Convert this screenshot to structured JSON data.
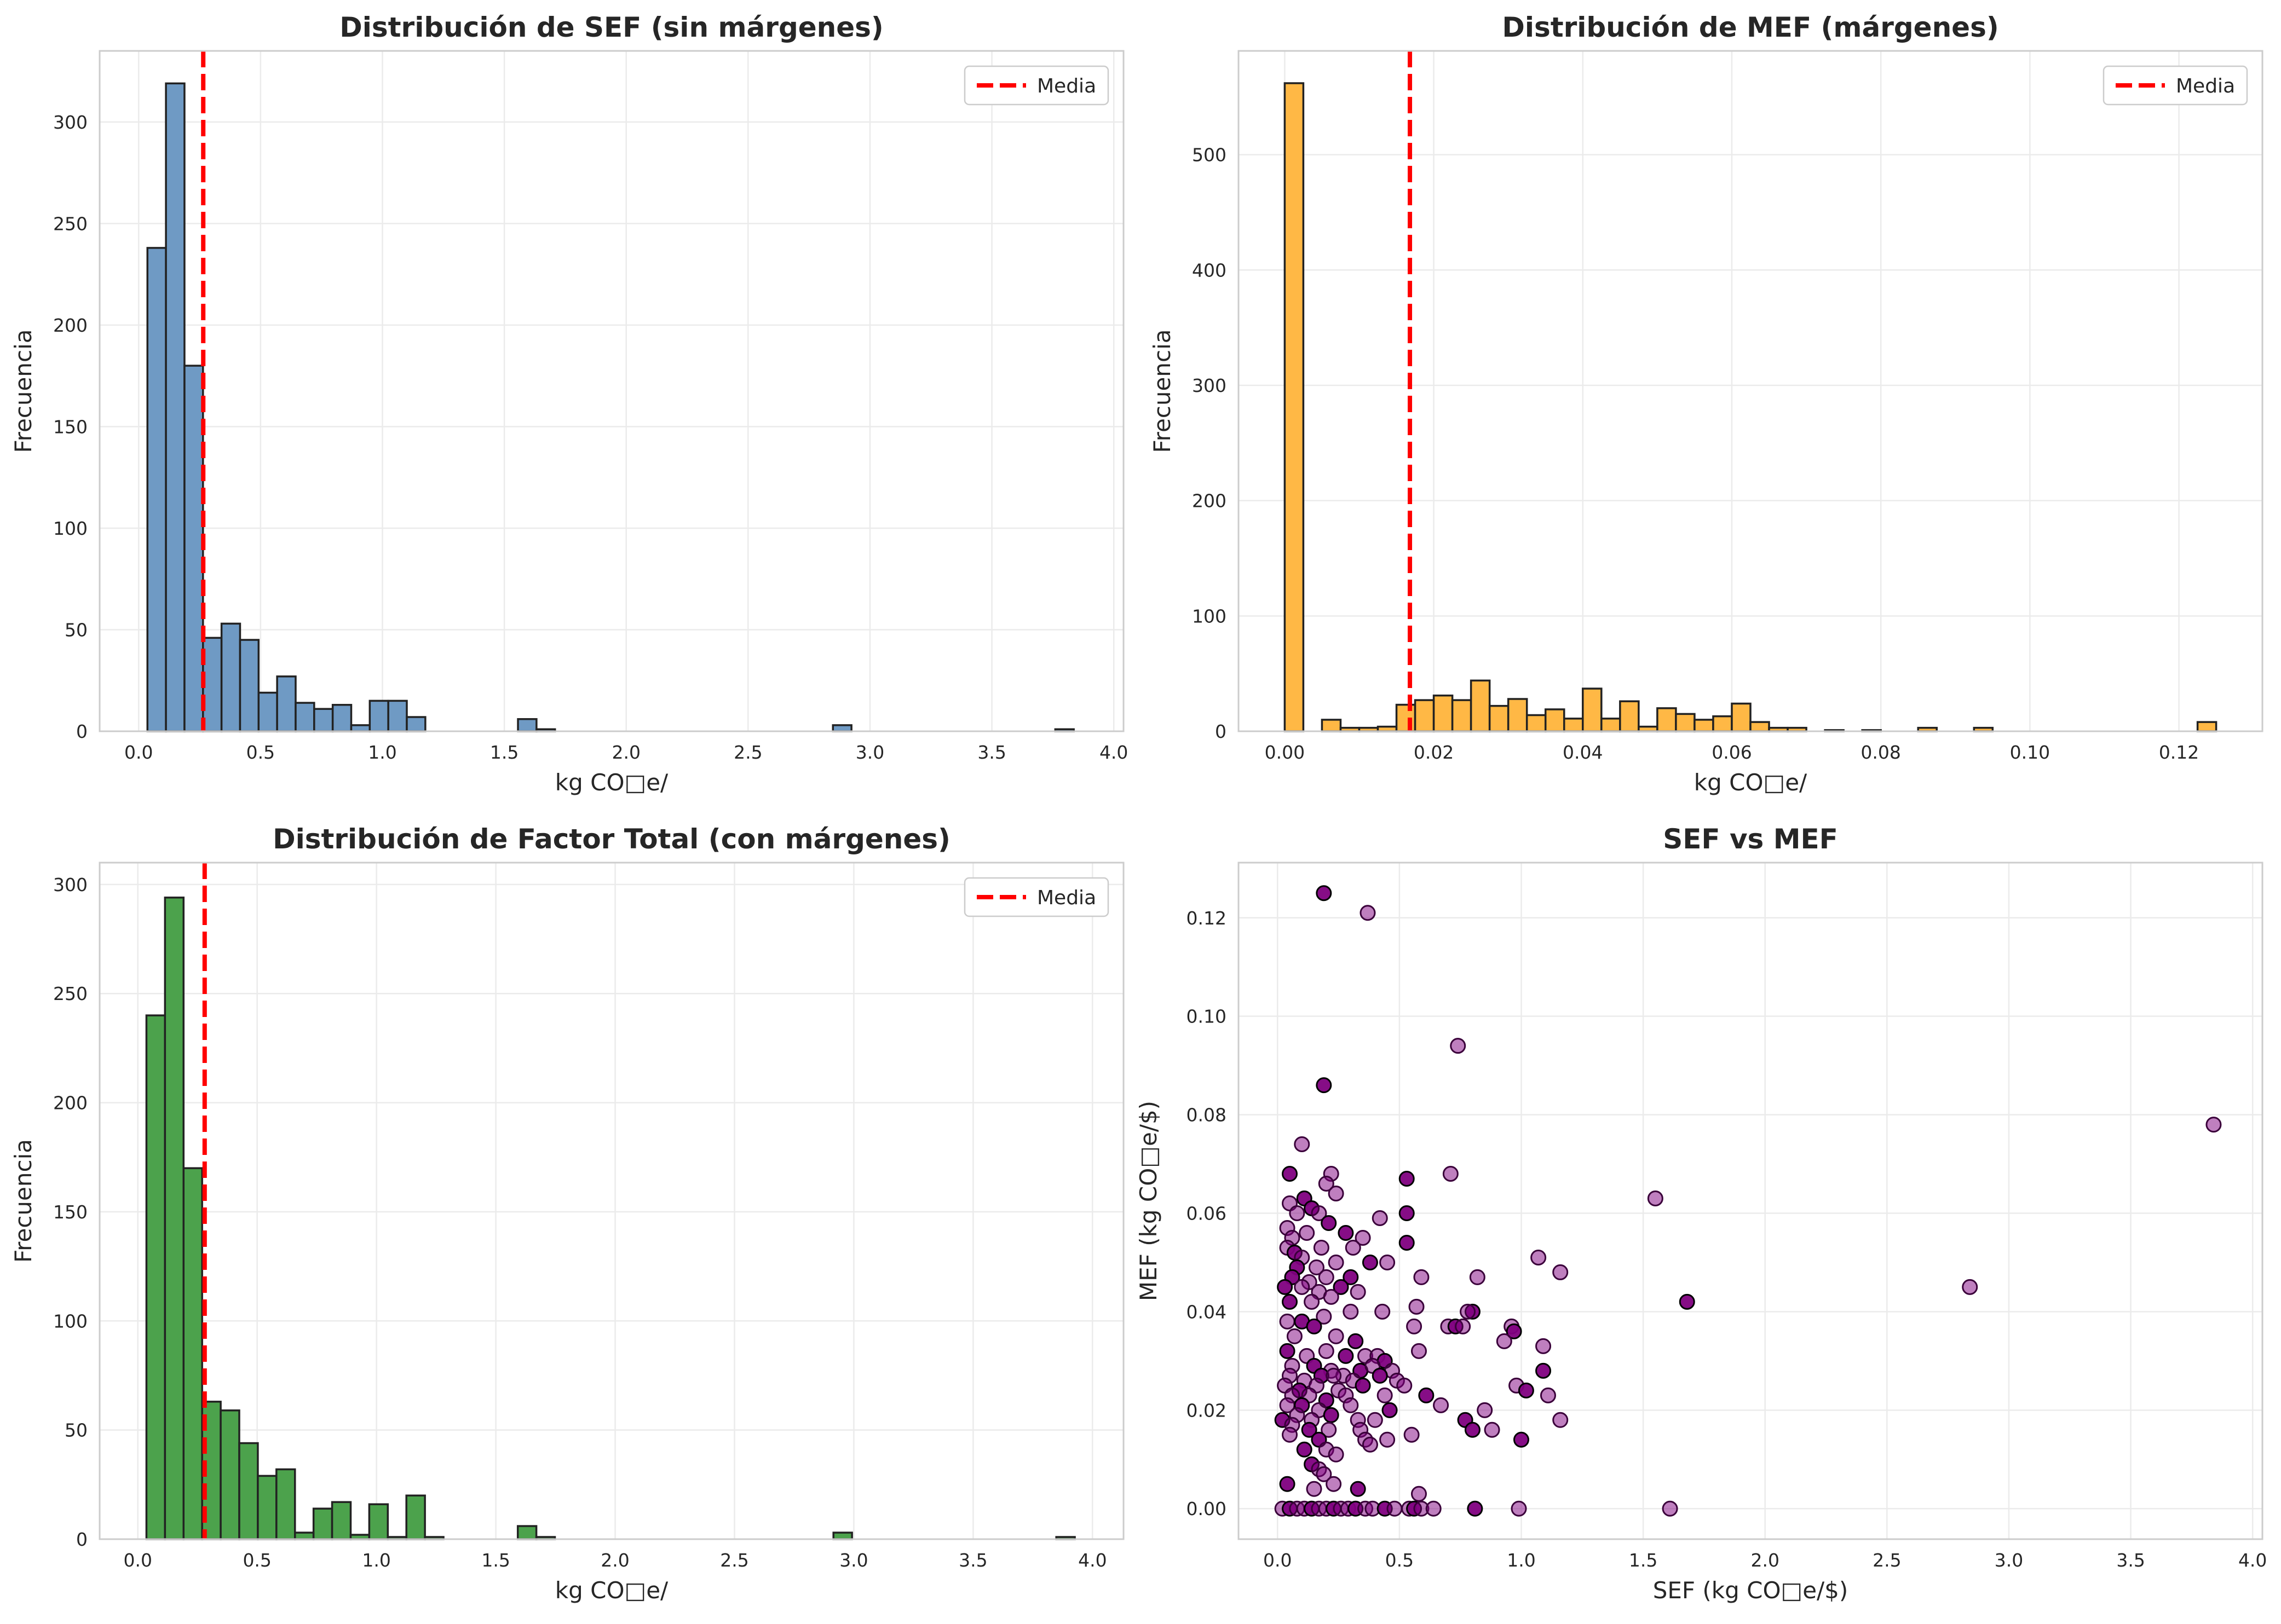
{
  "chart_data": [
    {
      "type": "bar",
      "title": "Distribución de SEF (sin márgenes)",
      "xlabel": "kg CO□e/",
      "ylabel": "Frecuencia",
      "xlim": [
        -0.16,
        4.04
      ],
      "ylim": [
        0,
        335
      ],
      "xticks": [
        0.0,
        0.5,
        1.0,
        1.5,
        2.0,
        2.5,
        3.0,
        3.5,
        4.0
      ],
      "xtick_labels": [
        "0.0",
        "0.5",
        "1.0",
        "1.5",
        "2.0",
        "2.5",
        "3.0",
        "3.5",
        "4.0"
      ],
      "yticks": [
        0,
        50,
        100,
        150,
        200,
        250,
        300
      ],
      "ytick_labels": [
        "0",
        "50",
        "100",
        "150",
        "200",
        "250",
        "300"
      ],
      "bin_start": 0.036,
      "bin_width": 0.076,
      "values": [
        238,
        319,
        180,
        46,
        53,
        45,
        19,
        27,
        14,
        11,
        13,
        3,
        15,
        15,
        7,
        0,
        0,
        0,
        0,
        0,
        6,
        1,
        0,
        0,
        0,
        0,
        0,
        0,
        0,
        0,
        0,
        0,
        0,
        0,
        0,
        0,
        0,
        3,
        0,
        0,
        0,
        0,
        0,
        0,
        0,
        0,
        0,
        0,
        0,
        1
      ],
      "mean": 0.265,
      "bar_color": "#6f9ac4",
      "mean_color": "#ff0000",
      "legend": [
        "Media"
      ],
      "legend_position": "top-right",
      "grid": true
    },
    {
      "type": "bar",
      "title": "Distribución de MEF (márgenes)",
      "xlabel": "kg CO□e/",
      "ylabel": "Frecuencia",
      "xlim": [
        -0.0062,
        0.1312
      ],
      "ylim": [
        0,
        590
      ],
      "xticks": [
        0.0,
        0.02,
        0.04,
        0.06,
        0.08,
        0.1,
        0.12
      ],
      "xtick_labels": [
        "0.00",
        "0.02",
        "0.04",
        "0.06",
        "0.08",
        "0.10",
        "0.12"
      ],
      "yticks": [
        0,
        100,
        200,
        300,
        400,
        500
      ],
      "ytick_labels": [
        "0",
        "100",
        "200",
        "300",
        "400",
        "500"
      ],
      "bin_start": 0.0,
      "bin_width": 0.0025,
      "values": [
        562,
        0,
        10,
        3,
        3,
        4,
        23,
        27,
        31,
        27,
        44,
        22,
        28,
        14,
        19,
        11,
        37,
        11,
        26,
        4,
        20,
        15,
        10,
        13,
        24,
        8,
        3,
        3,
        0,
        1,
        0,
        1,
        0,
        0,
        3,
        0,
        0,
        3,
        0,
        0,
        0,
        0,
        0,
        0,
        0,
        0,
        0,
        0,
        0,
        8
      ],
      "mean": 0.0168,
      "bar_color": "#ffb845",
      "mean_color": "#ff0000",
      "legend": [
        "Media"
      ],
      "legend_position": "top-right",
      "grid": true
    },
    {
      "type": "bar",
      "title": "Distribución de Factor Total (con márgenes)",
      "xlabel": "kg CO□e/",
      "ylabel": "Frecuencia",
      "xlim": [
        -0.16,
        4.13
      ],
      "ylim": [
        0,
        310
      ],
      "xticks": [
        0.0,
        0.5,
        1.0,
        1.5,
        2.0,
        2.5,
        3.0,
        3.5,
        4.0
      ],
      "xtick_labels": [
        "0.0",
        "0.5",
        "1.0",
        "1.5",
        "2.0",
        "2.5",
        "3.0",
        "3.5",
        "4.0"
      ],
      "yticks": [
        0,
        50,
        100,
        150,
        200,
        250,
        300
      ],
      "ytick_labels": [
        "0",
        "50",
        "100",
        "150",
        "200",
        "250",
        "300"
      ],
      "bin_start": 0.036,
      "bin_width": 0.0778,
      "values": [
        240,
        294,
        170,
        63,
        59,
        44,
        29,
        32,
        3,
        14,
        17,
        2,
        16,
        1,
        20,
        1,
        0,
        0,
        0,
        0,
        6,
        1,
        0,
        0,
        0,
        0,
        0,
        0,
        0,
        0,
        0,
        0,
        0,
        0,
        0,
        0,
        0,
        3,
        0,
        0,
        0,
        0,
        0,
        0,
        0,
        0,
        0,
        0,
        0,
        1
      ],
      "mean": 0.28,
      "bar_color": "#4ca24c",
      "mean_color": "#ff0000",
      "legend": [
        "Media"
      ],
      "legend_position": "top-right",
      "grid": true
    },
    {
      "type": "scatter",
      "title": "SEF vs MEF",
      "xlabel": "SEF (kg CO□e/$)",
      "ylabel": "MEF (kg CO□e/$)",
      "xlim": [
        -0.16,
        4.04
      ],
      "ylim": [
        -0.0062,
        0.1312
      ],
      "xticks": [
        0.0,
        0.5,
        1.0,
        1.5,
        2.0,
        2.5,
        3.0,
        3.5,
        4.0
      ],
      "xtick_labels": [
        "0.0",
        "0.5",
        "1.0",
        "1.5",
        "2.0",
        "2.5",
        "3.0",
        "3.5",
        "4.0"
      ],
      "yticks": [
        0.0,
        0.02,
        0.04,
        0.06,
        0.08,
        0.1,
        0.12
      ],
      "ytick_labels": [
        "0.00",
        "0.02",
        "0.04",
        "0.06",
        "0.08",
        "0.10",
        "0.12"
      ],
      "point_color": "#800080",
      "grid": true,
      "points": [
        [
          0.19,
          0.125
        ],
        [
          0.37,
          0.121
        ],
        [
          0.74,
          0.094
        ],
        [
          0.19,
          0.086
        ],
        [
          3.84,
          0.078
        ],
        [
          0.1,
          0.074
        ],
        [
          0.05,
          0.068
        ],
        [
          0.22,
          0.068
        ],
        [
          0.71,
          0.068
        ],
        [
          0.53,
          0.067
        ],
        [
          0.2,
          0.066
        ],
        [
          0.24,
          0.064
        ],
        [
          0.11,
          0.063
        ],
        [
          1.55,
          0.063
        ],
        [
          0.05,
          0.062
        ],
        [
          0.14,
          0.061
        ],
        [
          0.08,
          0.06
        ],
        [
          0.17,
          0.06
        ],
        [
          0.53,
          0.06
        ],
        [
          0.42,
          0.059
        ],
        [
          0.04,
          0.057
        ],
        [
          0.21,
          0.058
        ],
        [
          0.06,
          0.055
        ],
        [
          0.12,
          0.056
        ],
        [
          0.28,
          0.056
        ],
        [
          0.35,
          0.055
        ],
        [
          0.04,
          0.053
        ],
        [
          0.07,
          0.052
        ],
        [
          0.18,
          0.053
        ],
        [
          0.31,
          0.053
        ],
        [
          0.53,
          0.054
        ],
        [
          0.1,
          0.051
        ],
        [
          1.07,
          0.051
        ],
        [
          0.08,
          0.049
        ],
        [
          0.16,
          0.049
        ],
        [
          0.24,
          0.05
        ],
        [
          0.38,
          0.05
        ],
        [
          0.45,
          0.05
        ],
        [
          1.16,
          0.048
        ],
        [
          0.06,
          0.047
        ],
        [
          0.13,
          0.046
        ],
        [
          0.2,
          0.047
        ],
        [
          0.3,
          0.047
        ],
        [
          0.59,
          0.047
        ],
        [
          0.82,
          0.047
        ],
        [
          0.03,
          0.045
        ],
        [
          0.1,
          0.045
        ],
        [
          0.17,
          0.044
        ],
        [
          0.26,
          0.045
        ],
        [
          2.84,
          0.045
        ],
        [
          0.33,
          0.044
        ],
        [
          0.05,
          0.042
        ],
        [
          0.14,
          0.042
        ],
        [
          0.22,
          0.043
        ],
        [
          1.68,
          0.042
        ],
        [
          0.43,
          0.04
        ],
        [
          0.57,
          0.041
        ],
        [
          0.8,
          0.04
        ],
        [
          0.78,
          0.04
        ],
        [
          0.04,
          0.038
        ],
        [
          0.1,
          0.038
        ],
        [
          0.19,
          0.039
        ],
        [
          0.3,
          0.04
        ],
        [
          0.15,
          0.037
        ],
        [
          0.56,
          0.037
        ],
        [
          0.7,
          0.037
        ],
        [
          0.73,
          0.037
        ],
        [
          0.76,
          0.037
        ],
        [
          0.96,
          0.037
        ],
        [
          0.97,
          0.036
        ],
        [
          0.07,
          0.035
        ],
        [
          0.24,
          0.035
        ],
        [
          0.32,
          0.034
        ],
        [
          0.93,
          0.034
        ],
        [
          1.09,
          0.033
        ],
        [
          0.04,
          0.032
        ],
        [
          0.12,
          0.031
        ],
        [
          0.2,
          0.032
        ],
        [
          0.28,
          0.031
        ],
        [
          0.36,
          0.031
        ],
        [
          0.41,
          0.031
        ],
        [
          0.44,
          0.03
        ],
        [
          0.58,
          0.032
        ],
        [
          0.06,
          0.029
        ],
        [
          0.15,
          0.029
        ],
        [
          0.22,
          0.028
        ],
        [
          0.27,
          0.027
        ],
        [
          0.34,
          0.028
        ],
        [
          0.39,
          0.029
        ],
        [
          0.47,
          0.028
        ],
        [
          1.09,
          0.028
        ],
        [
          0.05,
          0.027
        ],
        [
          0.11,
          0.026
        ],
        [
          0.18,
          0.027
        ],
        [
          0.23,
          0.027
        ],
        [
          0.31,
          0.026
        ],
        [
          0.42,
          0.027
        ],
        [
          0.49,
          0.026
        ],
        [
          0.03,
          0.025
        ],
        [
          0.09,
          0.024
        ],
        [
          0.16,
          0.025
        ],
        [
          0.25,
          0.024
        ],
        [
          0.35,
          0.025
        ],
        [
          0.52,
          0.025
        ],
        [
          0.98,
          0.025
        ],
        [
          1.02,
          0.024
        ],
        [
          0.06,
          0.023
        ],
        [
          0.13,
          0.023
        ],
        [
          0.2,
          0.022
        ],
        [
          0.28,
          0.023
        ],
        [
          0.44,
          0.023
        ],
        [
          0.61,
          0.023
        ],
        [
          1.11,
          0.023
        ],
        [
          0.04,
          0.021
        ],
        [
          0.1,
          0.021
        ],
        [
          0.17,
          0.02
        ],
        [
          0.3,
          0.021
        ],
        [
          0.46,
          0.02
        ],
        [
          0.67,
          0.021
        ],
        [
          0.85,
          0.02
        ],
        [
          0.02,
          0.018
        ],
        [
          0.08,
          0.019
        ],
        [
          0.14,
          0.018
        ],
        [
          0.22,
          0.019
        ],
        [
          0.33,
          0.018
        ],
        [
          0.4,
          0.018
        ],
        [
          0.77,
          0.018
        ],
        [
          1.16,
          0.018
        ],
        [
          0.06,
          0.017
        ],
        [
          0.13,
          0.016
        ],
        [
          0.21,
          0.016
        ],
        [
          0.34,
          0.016
        ],
        [
          0.8,
          0.016
        ],
        [
          0.88,
          0.016
        ],
        [
          0.05,
          0.015
        ],
        [
          0.17,
          0.014
        ],
        [
          0.36,
          0.014
        ],
        [
          0.45,
          0.014
        ],
        [
          1.0,
          0.014
        ],
        [
          0.38,
          0.013
        ],
        [
          0.55,
          0.015
        ],
        [
          0.11,
          0.012
        ],
        [
          0.2,
          0.012
        ],
        [
          0.24,
          0.011
        ],
        [
          0.14,
          0.009
        ],
        [
          0.17,
          0.008
        ],
        [
          0.19,
          0.007
        ],
        [
          0.04,
          0.005
        ],
        [
          0.15,
          0.004
        ],
        [
          0.23,
          0.005
        ],
        [
          0.33,
          0.004
        ],
        [
          0.58,
          0.003
        ],
        [
          0.02,
          0.0
        ],
        [
          0.05,
          0.0
        ],
        [
          0.08,
          0.0
        ],
        [
          0.11,
          0.0
        ],
        [
          0.14,
          0.0
        ],
        [
          0.17,
          0.0
        ],
        [
          0.2,
          0.0
        ],
        [
          0.23,
          0.0
        ],
        [
          0.26,
          0.0
        ],
        [
          0.29,
          0.0
        ],
        [
          0.32,
          0.0
        ],
        [
          0.36,
          0.0
        ],
        [
          0.39,
          0.0
        ],
        [
          0.44,
          0.0
        ],
        [
          0.48,
          0.0
        ],
        [
          0.54,
          0.0
        ],
        [
          0.56,
          0.0
        ],
        [
          0.59,
          0.0
        ],
        [
          0.64,
          0.0
        ],
        [
          0.81,
          0.0
        ],
        [
          0.99,
          0.0
        ],
        [
          1.61,
          0.0
        ]
      ]
    }
  ]
}
